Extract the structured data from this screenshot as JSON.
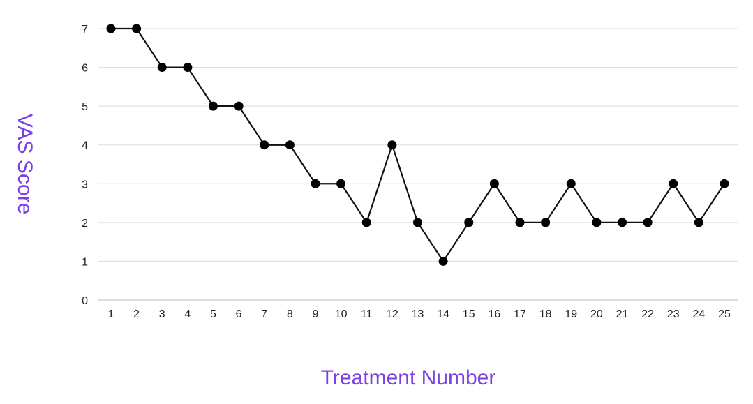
{
  "chart_data": {
    "type": "line",
    "title": "",
    "xlabel": "Treatment Number",
    "ylabel": "VAS Score",
    "x": [
      "1",
      "2",
      "3",
      "4",
      "5",
      "6",
      "7",
      "8",
      "9",
      "10",
      "11",
      "12",
      "13",
      "14",
      "15",
      "16",
      "17",
      "18",
      "19",
      "20",
      "21",
      "22",
      "23",
      "24",
      "25"
    ],
    "series": [
      {
        "values": [
          7,
          7,
          6,
          6,
          5,
          5,
          4,
          4,
          3,
          3,
          2,
          4,
          2,
          1,
          2,
          3,
          2,
          2,
          3,
          2,
          2,
          2,
          3,
          2,
          3
        ]
      }
    ],
    "ylim": [
      0,
      7
    ],
    "yticks": [
      "0",
      "1",
      "2",
      "3",
      "4",
      "5",
      "6",
      "7"
    ],
    "grid": true,
    "legend": "none",
    "colors": {
      "line": "#111111",
      "marker": "#000000",
      "axis_title": "#7b3fe4",
      "grid": "#dcdcdc"
    }
  }
}
